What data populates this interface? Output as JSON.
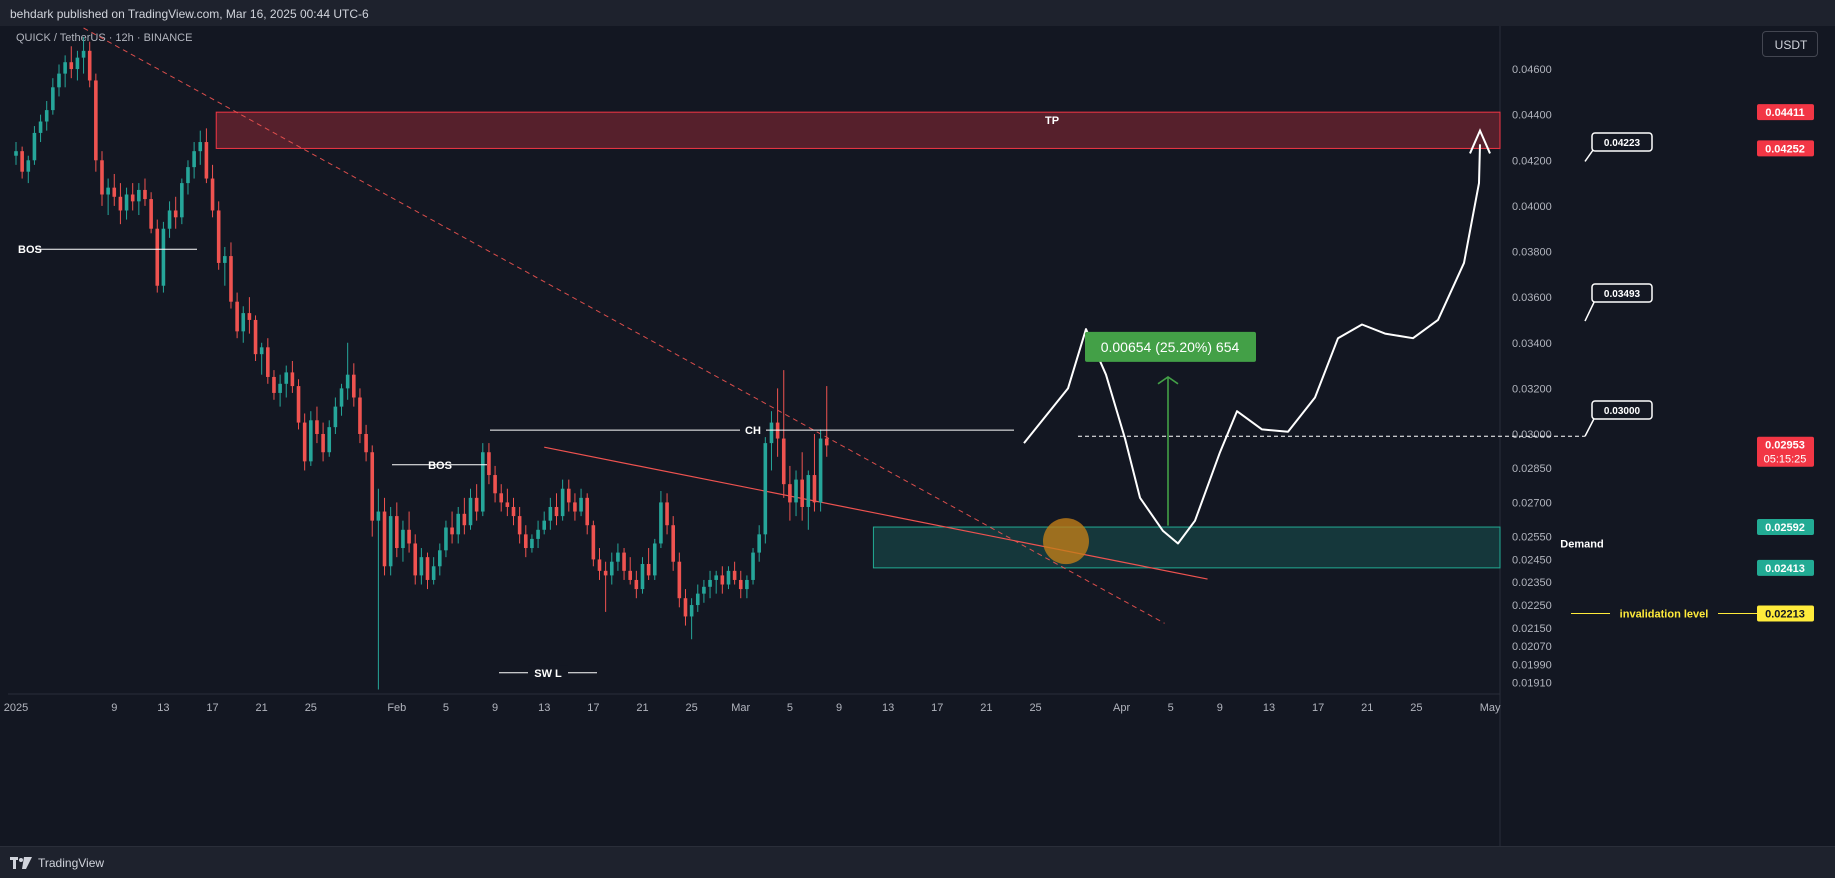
{
  "header": {
    "published": "behdark published on TradingView.com, Mar 16, 2025 00:44 UTC-6"
  },
  "footer": {
    "brand": "TradingView"
  },
  "currency_button": "USDT",
  "symbol_label": "QUICK / TetherUS · 12h · BINANCE",
  "colors": {
    "bg": "#131722",
    "up": "#26a69a",
    "down": "#ef5350",
    "tp": "#f23645",
    "demand": "#22ab94",
    "invalidation": "#ffeb3b",
    "measure": "#43a047"
  },
  "chart_data": {
    "type": "candlestick",
    "symbol": "QUICK / TetherUS",
    "interval": "12h",
    "exchange": "BINANCE",
    "ylim": [
      0.0186,
      0.0478
    ],
    "y_ticks": [
      0.0191,
      0.0199,
      0.0207,
      0.0215,
      0.0225,
      0.0235,
      0.0245,
      0.0255,
      0.027,
      0.0285,
      0.03,
      0.032,
      0.034,
      0.036,
      0.038,
      0.04,
      0.042,
      0.044,
      0.046
    ],
    "y_tick_labels": [
      "0.01910",
      "0.01990",
      "0.02070",
      "0.02150",
      "0.02250",
      "0.02350",
      "0.02450",
      "0.02550",
      "0.02700",
      "0.02850",
      "0.03000",
      "0.03200",
      "0.03400",
      "0.03600",
      "0.03800",
      "0.04000",
      "0.04200",
      "0.04400",
      "0.04600"
    ],
    "x_ticks": [
      {
        "day": 0,
        "label": "2025"
      },
      {
        "day": 8,
        "label": "9"
      },
      {
        "day": 12,
        "label": "13"
      },
      {
        "day": 16,
        "label": "17"
      },
      {
        "day": 20,
        "label": "21"
      },
      {
        "day": 24,
        "label": "25"
      },
      {
        "day": 31,
        "label": "Feb"
      },
      {
        "day": 35,
        "label": "5"
      },
      {
        "day": 39,
        "label": "9"
      },
      {
        "day": 43,
        "label": "13"
      },
      {
        "day": 47,
        "label": "17"
      },
      {
        "day": 51,
        "label": "21"
      },
      {
        "day": 55,
        "label": "25"
      },
      {
        "day": 59,
        "label": "Mar"
      },
      {
        "day": 63,
        "label": "5"
      },
      {
        "day": 67,
        "label": "9"
      },
      {
        "day": 71,
        "label": "13"
      },
      {
        "day": 75,
        "label": "17"
      },
      {
        "day": 79,
        "label": "21"
      },
      {
        "day": 83,
        "label": "25"
      },
      {
        "day": 90,
        "label": "Apr"
      },
      {
        "day": 94,
        "label": "5"
      },
      {
        "day": 98,
        "label": "9"
      },
      {
        "day": 102,
        "label": "13"
      },
      {
        "day": 106,
        "label": "17"
      },
      {
        "day": 110,
        "label": "21"
      },
      {
        "day": 114,
        "label": "25"
      },
      {
        "day": 120,
        "label": "May"
      }
    ],
    "candles_start": "2025-01-01",
    "candles_interval_days": 0.5,
    "candles_approx": [
      [
        0.0422,
        0.0428,
        0.0418,
        0.0424
      ],
      [
        0.0424,
        0.0426,
        0.0412,
        0.0415
      ],
      [
        0.0415,
        0.0422,
        0.041,
        0.042
      ],
      [
        0.042,
        0.0435,
        0.0418,
        0.0432
      ],
      [
        0.0432,
        0.044,
        0.0428,
        0.0437
      ],
      [
        0.0437,
        0.0446,
        0.0433,
        0.0442
      ],
      [
        0.0442,
        0.0456,
        0.044,
        0.0452
      ],
      [
        0.0452,
        0.0462,
        0.0448,
        0.0458
      ],
      [
        0.0458,
        0.0466,
        0.0452,
        0.0463
      ],
      [
        0.0463,
        0.047,
        0.0456,
        0.046
      ],
      [
        0.046,
        0.0468,
        0.0455,
        0.0465
      ],
      [
        0.0465,
        0.0474,
        0.0458,
        0.0468
      ],
      [
        0.0468,
        0.0472,
        0.0452,
        0.0455
      ],
      [
        0.0455,
        0.0458,
        0.0415,
        0.042
      ],
      [
        0.042,
        0.0424,
        0.04,
        0.0405
      ],
      [
        0.0405,
        0.0412,
        0.0396,
        0.0408
      ],
      [
        0.0408,
        0.0414,
        0.04,
        0.0404
      ],
      [
        0.0404,
        0.041,
        0.0392,
        0.0398
      ],
      [
        0.0398,
        0.0408,
        0.0394,
        0.0405
      ],
      [
        0.0405,
        0.041,
        0.0398,
        0.0402
      ],
      [
        0.0402,
        0.041,
        0.0396,
        0.0407
      ],
      [
        0.0407,
        0.0412,
        0.04,
        0.0403
      ],
      [
        0.0403,
        0.0406,
        0.0388,
        0.039
      ],
      [
        0.039,
        0.0394,
        0.0362,
        0.0365
      ],
      [
        0.0365,
        0.0393,
        0.0362,
        0.039
      ],
      [
        0.039,
        0.0402,
        0.0386,
        0.0398
      ],
      [
        0.0398,
        0.0404,
        0.039,
        0.0395
      ],
      [
        0.0395,
        0.0412,
        0.0392,
        0.041
      ],
      [
        0.041,
        0.042,
        0.0405,
        0.0417
      ],
      [
        0.0417,
        0.0428,
        0.0412,
        0.0424
      ],
      [
        0.0424,
        0.0433,
        0.0418,
        0.0428
      ],
      [
        0.0428,
        0.0434,
        0.041,
        0.0412
      ],
      [
        0.0412,
        0.0418,
        0.0395,
        0.0398
      ],
      [
        0.0398,
        0.0402,
        0.0372,
        0.0375
      ],
      [
        0.0375,
        0.0382,
        0.0365,
        0.0378
      ],
      [
        0.0378,
        0.0384,
        0.0355,
        0.0358
      ],
      [
        0.0358,
        0.0362,
        0.0342,
        0.0345
      ],
      [
        0.0345,
        0.0356,
        0.034,
        0.0353
      ],
      [
        0.0353,
        0.036,
        0.0344,
        0.035
      ],
      [
        0.035,
        0.0352,
        0.0332,
        0.0335
      ],
      [
        0.0335,
        0.034,
        0.0326,
        0.0338
      ],
      [
        0.0338,
        0.0342,
        0.0322,
        0.0325
      ],
      [
        0.0325,
        0.0328,
        0.0315,
        0.0318
      ],
      [
        0.0318,
        0.0326,
        0.0312,
        0.0322
      ],
      [
        0.0322,
        0.033,
        0.0316,
        0.0327
      ],
      [
        0.0327,
        0.0332,
        0.0318,
        0.0321
      ],
      [
        0.0321,
        0.0324,
        0.0302,
        0.0305
      ],
      [
        0.0305,
        0.0309,
        0.0284,
        0.0288
      ],
      [
        0.0288,
        0.031,
        0.0286,
        0.0306
      ],
      [
        0.0306,
        0.0312,
        0.0296,
        0.03
      ],
      [
        0.03,
        0.0305,
        0.0288,
        0.0292
      ],
      [
        0.0292,
        0.0306,
        0.029,
        0.0303
      ],
      [
        0.0303,
        0.0316,
        0.03,
        0.0312
      ],
      [
        0.0312,
        0.0322,
        0.0308,
        0.032
      ],
      [
        0.032,
        0.034,
        0.0315,
        0.0326
      ],
      [
        0.0326,
        0.0331,
        0.0312,
        0.0316
      ],
      [
        0.0316,
        0.032,
        0.0296,
        0.03
      ],
      [
        0.03,
        0.0304,
        0.0288,
        0.0292
      ],
      [
        0.0292,
        0.0295,
        0.0255,
        0.0262
      ],
      [
        0.0262,
        0.0276,
        0.0188,
        0.0266
      ],
      [
        0.0266,
        0.0272,
        0.0238,
        0.0242
      ],
      [
        0.0242,
        0.0268,
        0.0238,
        0.0264
      ],
      [
        0.0264,
        0.027,
        0.0246,
        0.025
      ],
      [
        0.025,
        0.0262,
        0.0244,
        0.0258
      ],
      [
        0.0258,
        0.0266,
        0.0248,
        0.0252
      ],
      [
        0.0252,
        0.0256,
        0.0234,
        0.0238
      ],
      [
        0.0238,
        0.025,
        0.0234,
        0.0246
      ],
      [
        0.0246,
        0.0248,
        0.0232,
        0.0236
      ],
      [
        0.0236,
        0.0246,
        0.0234,
        0.0242
      ],
      [
        0.0242,
        0.0252,
        0.0238,
        0.0249
      ],
      [
        0.0249,
        0.0262,
        0.0246,
        0.0259
      ],
      [
        0.0259,
        0.0266,
        0.0252,
        0.0256
      ],
      [
        0.0256,
        0.0268,
        0.0252,
        0.0265
      ],
      [
        0.0265,
        0.0272,
        0.0256,
        0.026
      ],
      [
        0.026,
        0.0276,
        0.0258,
        0.0272
      ],
      [
        0.0272,
        0.0278,
        0.0262,
        0.0266
      ],
      [
        0.0266,
        0.0296,
        0.0264,
        0.0292
      ],
      [
        0.0292,
        0.0296,
        0.0278,
        0.0282
      ],
      [
        0.0282,
        0.0286,
        0.027,
        0.0274
      ],
      [
        0.0274,
        0.0278,
        0.0266,
        0.027
      ],
      [
        0.027,
        0.0276,
        0.0264,
        0.0268
      ],
      [
        0.0268,
        0.0272,
        0.026,
        0.0264
      ],
      [
        0.0264,
        0.0268,
        0.0252,
        0.0256
      ],
      [
        0.0256,
        0.026,
        0.0246,
        0.025
      ],
      [
        0.025,
        0.0256,
        0.0248,
        0.0254
      ],
      [
        0.0254,
        0.0262,
        0.025,
        0.0258
      ],
      [
        0.0258,
        0.0266,
        0.0256,
        0.0262
      ],
      [
        0.0262,
        0.0272,
        0.0258,
        0.0268
      ],
      [
        0.0268,
        0.0274,
        0.026,
        0.0264
      ],
      [
        0.0264,
        0.028,
        0.0262,
        0.0276
      ],
      [
        0.0276,
        0.028,
        0.0266,
        0.027
      ],
      [
        0.027,
        0.0274,
        0.0262,
        0.0266
      ],
      [
        0.0266,
        0.0276,
        0.0264,
        0.0272
      ],
      [
        0.0272,
        0.0274,
        0.0256,
        0.026
      ],
      [
        0.026,
        0.0262,
        0.0242,
        0.0245
      ],
      [
        0.0245,
        0.025,
        0.0236,
        0.024
      ],
      [
        0.024,
        0.0244,
        0.0222,
        0.0238
      ],
      [
        0.0238,
        0.0248,
        0.0234,
        0.0244
      ],
      [
        0.0244,
        0.0252,
        0.024,
        0.0248
      ],
      [
        0.0248,
        0.025,
        0.0236,
        0.024
      ],
      [
        0.024,
        0.0246,
        0.0234,
        0.0236
      ],
      [
        0.0236,
        0.024,
        0.0228,
        0.0232
      ],
      [
        0.0232,
        0.0246,
        0.023,
        0.0243
      ],
      [
        0.0243,
        0.025,
        0.0236,
        0.0238
      ],
      [
        0.0238,
        0.0254,
        0.0236,
        0.0252
      ],
      [
        0.0252,
        0.0275,
        0.025,
        0.027
      ],
      [
        0.027,
        0.0274,
        0.0256,
        0.026
      ],
      [
        0.026,
        0.0264,
        0.024,
        0.0244
      ],
      [
        0.0244,
        0.0248,
        0.0224,
        0.0228
      ],
      [
        0.0228,
        0.0232,
        0.0216,
        0.022
      ],
      [
        0.022,
        0.0228,
        0.021,
        0.0225
      ],
      [
        0.0225,
        0.0234,
        0.0222,
        0.023
      ],
      [
        0.023,
        0.0236,
        0.0226,
        0.0233
      ],
      [
        0.0233,
        0.024,
        0.0228,
        0.0236
      ],
      [
        0.0236,
        0.024,
        0.023,
        0.0238
      ],
      [
        0.0238,
        0.0242,
        0.023,
        0.0234
      ],
      [
        0.0234,
        0.0242,
        0.0232,
        0.024
      ],
      [
        0.024,
        0.0244,
        0.0234,
        0.0236
      ],
      [
        0.0236,
        0.024,
        0.0228,
        0.0232
      ],
      [
        0.0232,
        0.0238,
        0.0228,
        0.0236
      ],
      [
        0.0236,
        0.025,
        0.0234,
        0.0248
      ],
      [
        0.0248,
        0.026,
        0.0244,
        0.0256
      ],
      [
        0.0256,
        0.03,
        0.0252,
        0.0296
      ],
      [
        0.0296,
        0.031,
        0.0284,
        0.0305
      ],
      [
        0.0305,
        0.032,
        0.029,
        0.0298
      ],
      [
        0.0298,
        0.0328,
        0.0272,
        0.0278
      ],
      [
        0.0278,
        0.0286,
        0.0262,
        0.027
      ],
      [
        0.027,
        0.0284,
        0.0264,
        0.028
      ],
      [
        0.028,
        0.0292,
        0.0262,
        0.0268
      ],
      [
        0.0268,
        0.0284,
        0.0258,
        0.0282
      ],
      [
        0.0282,
        0.03,
        0.0266,
        0.027
      ],
      [
        0.027,
        0.0302,
        0.0266,
        0.0298
      ],
      [
        0.0298,
        0.0321,
        0.029,
        0.0295
      ]
    ],
    "levels": [
      {
        "name": "TP top",
        "value": 0.04411,
        "label": "0.04411"
      },
      {
        "name": "TP bottom",
        "value": 0.04252,
        "label": "0.04252"
      },
      {
        "name": "Demand top",
        "value": 0.02592,
        "label": "0.02592"
      },
      {
        "name": "Demand bottom",
        "value": 0.02413,
        "label": "0.02413"
      },
      {
        "name": "invalidation level",
        "value": 0.02213,
        "label": "0.02213"
      }
    ],
    "last_price": {
      "value": 0.02953,
      "label": "0.02953",
      "countdown": "05:15:25"
    },
    "zones": [
      {
        "name": "TP",
        "from": 0.04252,
        "to": 0.04411,
        "start_day": 16.3,
        "label": "TP"
      },
      {
        "name": "Demand",
        "from": 0.02413,
        "to": 0.02592,
        "start_day": 69.8,
        "label": "Demand"
      }
    ],
    "annotations": {
      "bos1": "BOS",
      "bos2": "BOS",
      "ch": "CH",
      "swl": "SW L",
      "tp": "TP",
      "demand": "Demand",
      "invalidation": "invalidation level",
      "measure": "0.00654 (25.20%) 654",
      "callouts": [
        "0.04223",
        "0.03493",
        "0.03000"
      ]
    }
  }
}
